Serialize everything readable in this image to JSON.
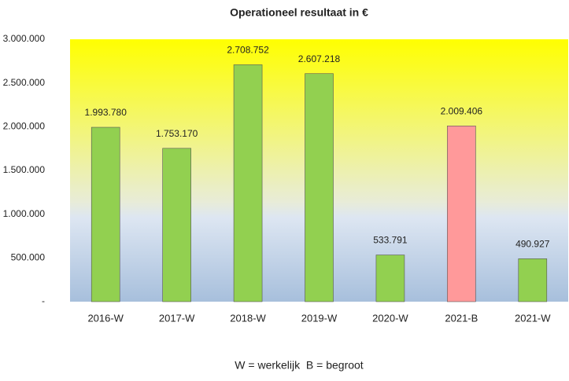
{
  "chart_data": {
    "type": "bar",
    "title": "Operationeel resultaat in €",
    "categories": [
      "2016-W",
      "2017-W",
      "2018-W",
      "2019-W",
      "2020-W",
      "2021-B",
      "2021-W"
    ],
    "values": [
      1993780,
      1753170,
      2708752,
      2607218,
      533791,
      2009406,
      490927
    ],
    "value_labels": [
      "1.993.780",
      "1.753.170",
      "2.708.752",
      "2.607.218",
      "533.791",
      "2.009.406",
      "490.927"
    ],
    "colors": [
      "#92d050",
      "#92d050",
      "#92d050",
      "#92d050",
      "#92d050",
      "#ff999a",
      "#92d050"
    ],
    "ylim": [
      0,
      3000000
    ],
    "yticks": [
      {
        "value": 0,
        "label": "-"
      },
      {
        "value": 500000,
        "label": "500.000"
      },
      {
        "value": 1000000,
        "label": "1.000.000"
      },
      {
        "value": 1500000,
        "label": "1.500.000"
      },
      {
        "value": 2000000,
        "label": "2.000.000"
      },
      {
        "value": 2500000,
        "label": "2.500.000"
      },
      {
        "value": 3000000,
        "label": "3.000.000"
      }
    ],
    "grid": false,
    "annotation": "W = werkelijk  B = begroot"
  }
}
